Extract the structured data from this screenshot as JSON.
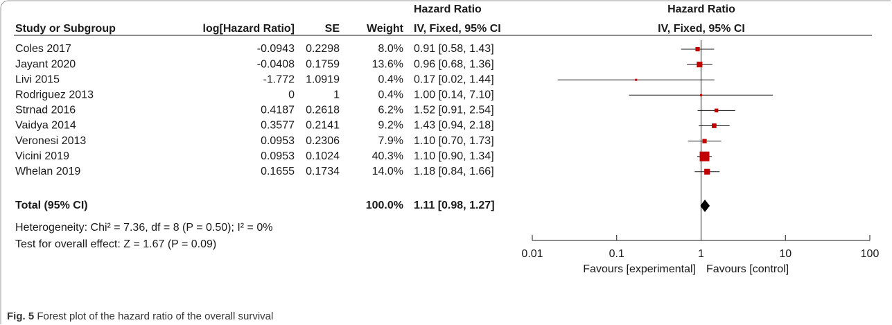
{
  "chart_data": {
    "type": "forest",
    "columns": {
      "study": "Study or Subgroup",
      "log_hr": "log[Hazard Ratio]",
      "se": "SE",
      "weight": "Weight",
      "ci_group": "Hazard Ratio",
      "ci_method": "IV, Fixed, 95% CI"
    },
    "plot_title": "Hazard Ratio",
    "plot_subtitle": "IV, Fixed, 95% CI",
    "rows": [
      {
        "study": "Coles 2017",
        "log_hr": -0.0943,
        "se": 0.2298,
        "weight": 8.0,
        "weight_label": "8.0%",
        "ci_label": "0.91 [0.58, 1.43]",
        "hr": 0.91,
        "ci": [
          0.58,
          1.43
        ]
      },
      {
        "study": "Jayant 2020",
        "log_hr": -0.0408,
        "se": 0.1759,
        "weight": 13.6,
        "weight_label": "13.6%",
        "ci_label": "0.96 [0.68, 1.36]",
        "hr": 0.96,
        "ci": [
          0.68,
          1.36
        ]
      },
      {
        "study": "Livi 2015",
        "log_hr": -1.772,
        "se": 1.0919,
        "weight": 0.4,
        "weight_label": "0.4%",
        "ci_label": "0.17 [0.02, 1.44]",
        "hr": 0.17,
        "ci": [
          0.02,
          1.44
        ]
      },
      {
        "study": "Rodriguez 2013",
        "log_hr": 0,
        "se": 1,
        "weight": 0.4,
        "weight_label": "0.4%",
        "ci_label": "1.00 [0.14, 7.10]",
        "hr": 1.0,
        "ci": [
          0.14,
          7.1
        ]
      },
      {
        "study": "Strnad 2016",
        "log_hr": 0.4187,
        "se": 0.2618,
        "weight": 6.2,
        "weight_label": "6.2%",
        "ci_label": "1.52 [0.91, 2.54]",
        "hr": 1.52,
        "ci": [
          0.91,
          2.54
        ]
      },
      {
        "study": "Vaidya 2014",
        "log_hr": 0.3577,
        "se": 0.2141,
        "weight": 9.2,
        "weight_label": "9.2%",
        "ci_label": "1.43 [0.94, 2.18]",
        "hr": 1.43,
        "ci": [
          0.94,
          2.18
        ]
      },
      {
        "study": "Veronesi 2013",
        "log_hr": 0.0953,
        "se": 0.2306,
        "weight": 7.9,
        "weight_label": "7.9%",
        "ci_label": "1.10 [0.70, 1.73]",
        "hr": 1.1,
        "ci": [
          0.7,
          1.73
        ]
      },
      {
        "study": "Vicini 2019",
        "log_hr": 0.0953,
        "se": 0.1024,
        "weight": 40.3,
        "weight_label": "40.3%",
        "ci_label": "1.10 [0.90, 1.34]",
        "hr": 1.1,
        "ci": [
          0.9,
          1.34
        ]
      },
      {
        "study": "Whelan 2019",
        "log_hr": 0.1655,
        "se": 0.1734,
        "weight": 14.0,
        "weight_label": "14.0%",
        "ci_label": "1.18 [0.84, 1.66]",
        "hr": 1.18,
        "ci": [
          0.84,
          1.66
        ]
      }
    ],
    "total": {
      "label": "Total (95% CI)",
      "weight": 100.0,
      "weight_label": "100.0%",
      "ci_label": "1.11 [0.98, 1.27]",
      "hr": 1.11,
      "ci": [
        0.98,
        1.27
      ]
    },
    "heterogeneity": "Heterogeneity: Chi² = 7.36, df = 8 (P = 0.50); I² = 0%",
    "overall_effect": "Test for overall effect: Z = 1.67 (P = 0.09)",
    "xlim": [
      0.01,
      100
    ],
    "xticks": [
      0.01,
      0.1,
      1,
      10,
      100
    ],
    "log_scale": true,
    "favours_left": "Favours [experimental]",
    "favours_right": "Favours [control]",
    "color": "#c00000"
  },
  "caption": {
    "label": "Fig. 5",
    "text": "Forest plot of the hazard ratio of the overall survival"
  }
}
